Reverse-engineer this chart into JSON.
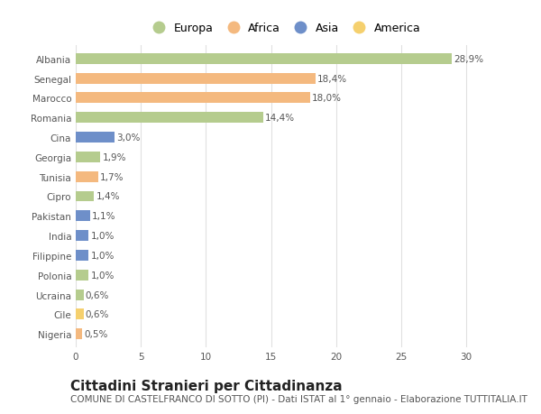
{
  "categories": [
    "Albania",
    "Senegal",
    "Marocco",
    "Romania",
    "Cina",
    "Georgia",
    "Tunisia",
    "Cipro",
    "Pakistan",
    "India",
    "Filippine",
    "Polonia",
    "Ucraina",
    "Cile",
    "Nigeria"
  ],
  "values": [
    28.9,
    18.4,
    18.0,
    14.4,
    3.0,
    1.9,
    1.7,
    1.4,
    1.1,
    1.0,
    1.0,
    1.0,
    0.6,
    0.6,
    0.5
  ],
  "labels": [
    "28,9%",
    "18,4%",
    "18,0%",
    "14,4%",
    "3,0%",
    "1,9%",
    "1,7%",
    "1,4%",
    "1,1%",
    "1,0%",
    "1,0%",
    "1,0%",
    "0,6%",
    "0,6%",
    "0,5%"
  ],
  "continents": [
    "Europa",
    "Africa",
    "Africa",
    "Europa",
    "Asia",
    "Europa",
    "Africa",
    "Europa",
    "Asia",
    "Asia",
    "Asia",
    "Europa",
    "Europa",
    "America",
    "Africa"
  ],
  "continent_colors": {
    "Europa": "#b5cc8e",
    "Africa": "#f4b97f",
    "Asia": "#6e8fc9",
    "America": "#f5d06e"
  },
  "legend_order": [
    "Europa",
    "Africa",
    "Asia",
    "America"
  ],
  "xlim": [
    0,
    32
  ],
  "xticks": [
    0,
    5,
    10,
    15,
    20,
    25,
    30
  ],
  "background_color": "#ffffff",
  "grid_color": "#e0e0e0",
  "title": "Cittadini Stranieri per Cittadinanza",
  "subtitle": "COMUNE DI CASTELFRANCO DI SOTTO (PI) - Dati ISTAT al 1° gennaio - Elaborazione TUTTITALIA.IT",
  "title_fontsize": 11,
  "subtitle_fontsize": 7.5,
  "label_fontsize": 7.5,
  "tick_fontsize": 7.5,
  "legend_fontsize": 9,
  "bar_height": 0.55
}
